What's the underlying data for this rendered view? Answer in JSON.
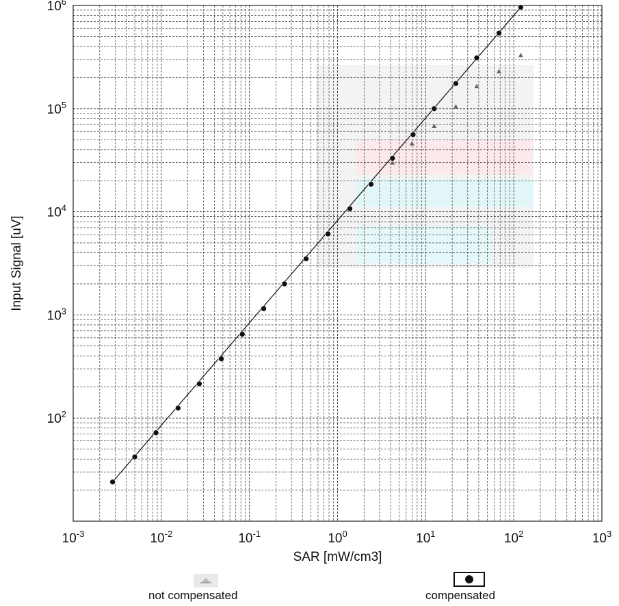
{
  "chart_data": {
    "type": "scatter",
    "xlabel": "SAR [mW/cm3]",
    "ylabel": "Input Signal [uV]",
    "x_scale": "log",
    "y_scale": "log",
    "xlim": [
      0.001,
      1000
    ],
    "ylim": [
      10,
      1000000
    ],
    "grid": true,
    "x_ticks": [
      {
        "base": "10",
        "exp": "-3",
        "value": 0.001
      },
      {
        "base": "10",
        "exp": "-2",
        "value": 0.01
      },
      {
        "base": "10",
        "exp": "-1",
        "value": 0.1
      },
      {
        "base": "10",
        "exp": "0",
        "value": 1
      },
      {
        "base": "10",
        "exp": "1",
        "value": 10
      },
      {
        "base": "10",
        "exp": "2",
        "value": 100
      },
      {
        "base": "10",
        "exp": "3",
        "value": 1000
      }
    ],
    "y_ticks": [
      {
        "base": "10",
        "exp": "2",
        "value": 100
      },
      {
        "base": "10",
        "exp": "3",
        "value": 1000
      },
      {
        "base": "10",
        "exp": "4",
        "value": 10000
      },
      {
        "base": "10",
        "exp": "5",
        "value": 100000
      },
      {
        "base": "10",
        "exp": "6",
        "value": 1000000
      }
    ],
    "series": [
      {
        "name": "not compensated",
        "style": "triangle",
        "color": "#666666",
        "x": [
          4.2,
          7.0,
          12.5,
          22,
          38,
          68,
          120
        ],
        "y": [
          30000,
          46000,
          68000,
          105000,
          165000,
          230000,
          330000
        ]
      },
      {
        "name": "compensated",
        "style": "filled-circle",
        "color": "#111111",
        "x": [
          0.0028,
          0.005,
          0.0087,
          0.0155,
          0.027,
          0.048,
          0.083,
          0.145,
          0.25,
          0.44,
          0.78,
          1.38,
          2.4,
          4.2,
          7.2,
          12.5,
          22,
          38,
          68,
          120
        ],
        "y": [
          24,
          42,
          72,
          125,
          215,
          375,
          650,
          1150,
          2000,
          3500,
          6100,
          10700,
          18500,
          33000,
          56000,
          100000,
          175000,
          310000,
          540000,
          960000
        ]
      }
    ],
    "fit_line": {
      "x": [
        0.0028,
        120
      ],
      "y": [
        24,
        960000
      ],
      "color": "#111111"
    }
  },
  "legend": {
    "not_compensated_label": "not compensated",
    "compensated_label": "compensated"
  }
}
